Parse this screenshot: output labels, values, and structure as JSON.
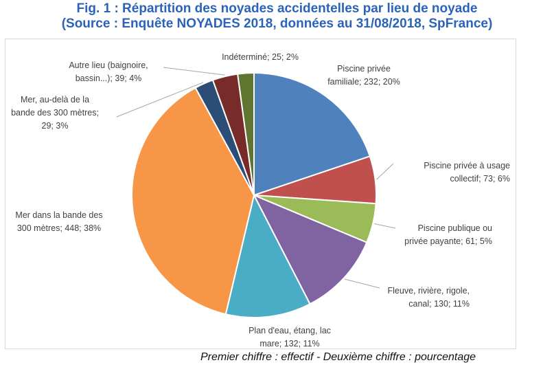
{
  "figure": {
    "title_line1": "Fig. 1 : Répartition des noyades accidentelles par lieu de noyade",
    "title_line2": "(Source : Enquête NOYADES 2018, données au 31/08/2018, SpFrance)",
    "footnote": "Premier chiffre : effectif - Deuxième chiffre : pourcentage"
  },
  "chart_data": {
    "type": "pie",
    "title": "Fig. 1 : Répartition des noyades accidentelles par lieu de noyade",
    "start": "12 o'clock",
    "direction": "clockwise",
    "slices": [
      {
        "category": "Piscine privée familiale",
        "count": 232,
        "percent": 20,
        "color": "#4f81bd",
        "label_lines": [
          "Piscine privée",
          "familiale; 232; 20%"
        ]
      },
      {
        "category": "Piscine privée à usage collectif",
        "count": 73,
        "percent": 6,
        "color": "#c0504d",
        "label_lines": [
          "Piscine privée à usage",
          "collectif; 73; 6%"
        ]
      },
      {
        "category": "Piscine publique ou privée payante",
        "count": 61,
        "percent": 5,
        "color": "#9bbb59",
        "label_lines": [
          "Piscine publique ou",
          "privée payante; 61; 5%"
        ]
      },
      {
        "category": "Fleuve, rivière, rigole, canal",
        "count": 130,
        "percent": 11,
        "color": "#8064a2",
        "label_lines": [
          "Fleuve, rivière, rigole,",
          "canal; 130; 11%"
        ]
      },
      {
        "category": "Plan d'eau, étang, lac mare",
        "count": 132,
        "percent": 11,
        "color": "#4bacc6",
        "label_lines": [
          "Plan d'eau, étang, lac",
          "mare; 132; 11%"
        ]
      },
      {
        "category": "Mer dans la bande des 300 mètres",
        "count": 448,
        "percent": 38,
        "color": "#f79646",
        "label_lines": [
          "Mer dans la bande des",
          "300 mètres; 448; 38%"
        ]
      },
      {
        "category": "Mer, au-delà de la bande des 300 mètres",
        "count": 29,
        "percent": 3,
        "color": "#2c4d75",
        "label_lines": [
          "Mer, au-delà de la",
          "bande des 300 mètres;",
          "29; 3%"
        ]
      },
      {
        "category": "Autre lieu (baignoire, bassin...)",
        "count": 39,
        "percent": 4,
        "color": "#772c2a",
        "label_lines": [
          "Autre lieu (baignoire,",
          "bassin...); 39; 4%"
        ]
      },
      {
        "category": "Indéterminé",
        "count": 25,
        "percent": 2,
        "color": "#5f7530",
        "label_lines": [
          "Indéterminé; 25; 2%"
        ]
      }
    ]
  }
}
